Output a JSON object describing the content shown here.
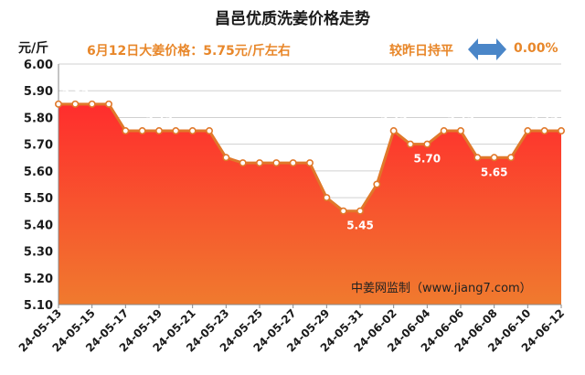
{
  "chart_data": {
    "type": "area",
    "title": "昌邑优质洗姜价格走势",
    "ylabel": "元/斤",
    "ylim": [
      5.1,
      6.0
    ],
    "y_ticks": [
      "6.00",
      "5.90",
      "5.80",
      "5.70",
      "5.60",
      "5.50",
      "5.40",
      "5.30",
      "5.20",
      "5.10"
    ],
    "grid": true,
    "x": [
      "24-05-13",
      "24-05-14",
      "24-05-15",
      "24-05-16",
      "24-05-17",
      "24-05-18",
      "24-05-19",
      "24-05-20",
      "24-05-21",
      "24-05-22",
      "24-05-23",
      "24-05-24",
      "24-05-25",
      "24-05-26",
      "24-05-27",
      "24-05-28",
      "24-05-29",
      "24-05-30",
      "24-05-31",
      "24-06-01",
      "24-06-02",
      "24-06-03",
      "24-06-04",
      "24-06-05",
      "24-06-06",
      "24-06-07",
      "24-06-08",
      "24-06-09",
      "24-06-10",
      "24-06-11",
      "24-06-12"
    ],
    "x_tick_labels": [
      "24-05-13",
      "24-05-15",
      "24-05-17",
      "24-05-19",
      "24-05-21",
      "24-05-23",
      "24-05-25",
      "24-05-27",
      "24-05-29",
      "24-05-31",
      "24-06-02",
      "24-06-04",
      "24-06-06",
      "24-06-08",
      "24-06-10",
      "24-06-12"
    ],
    "values": [
      5.85,
      5.85,
      5.85,
      5.85,
      5.75,
      5.75,
      5.75,
      5.75,
      5.75,
      5.75,
      5.65,
      5.63,
      5.63,
      5.63,
      5.63,
      5.63,
      5.5,
      5.45,
      5.45,
      5.55,
      5.75,
      5.7,
      5.7,
      5.75,
      5.75,
      5.65,
      5.65,
      5.65,
      5.75,
      5.75,
      5.75
    ],
    "data_labels": [
      {
        "index": 1,
        "text": "5.85"
      },
      {
        "index": 6,
        "text": "5.75"
      },
      {
        "index": 13,
        "text": "5.63"
      },
      {
        "index": 18,
        "text": "5.45"
      },
      {
        "index": 20,
        "text": "5.75"
      },
      {
        "index": 22,
        "text": "5.70"
      },
      {
        "index": 24,
        "text": "5.75"
      },
      {
        "index": 26,
        "text": "5.65"
      },
      {
        "index": 29,
        "text": "5.75"
      }
    ],
    "colors": {
      "line": "#e0782a",
      "fill_top": "#ff2d2d",
      "fill_bottom": "#f07a2e",
      "marker_fill": "#ffffff"
    }
  },
  "header": {
    "title": "昌邑优质洗姜价格走势",
    "unit": "元/斤",
    "price_note": "6月12日大姜价格：5.75元/斤左右",
    "trend_label": "较昨日持平",
    "trend_pct": "0.00%",
    "trend_icon": "double-arrow-icon",
    "trend_icon_color": "#4a86c8"
  },
  "watermark": "中姜网监制（www.jiang7.com）"
}
